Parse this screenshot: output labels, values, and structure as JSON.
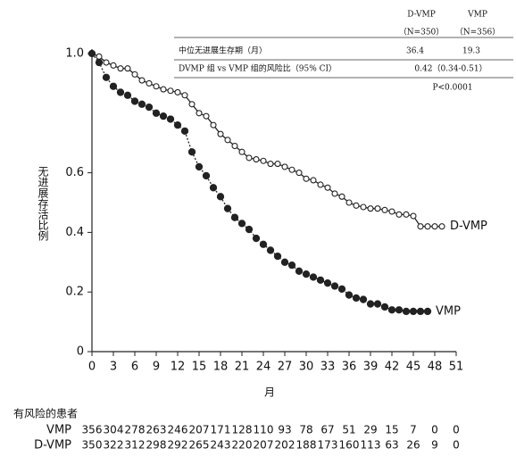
{
  "chart_data": {
    "type": "line",
    "y_label": "无进展存活比例",
    "x_label": "月",
    "x": [
      0,
      1,
      2,
      3,
      4,
      5,
      6,
      7,
      8,
      9,
      10,
      11,
      12,
      13,
      14,
      15,
      16,
      17,
      18,
      19,
      20,
      21,
      22,
      23,
      24,
      25,
      26,
      27,
      28,
      29,
      30,
      31,
      32,
      33,
      34,
      35,
      36,
      37,
      38,
      39,
      40,
      41,
      42,
      43,
      44,
      45,
      46,
      47,
      48,
      49
    ],
    "series": [
      {
        "name": "D-VMP",
        "color": "#222222",
        "line_style": "solid",
        "marker": "open",
        "values": [
          1.0,
          0.99,
          0.97,
          0.96,
          0.95,
          0.95,
          0.93,
          0.91,
          0.9,
          0.89,
          0.88,
          0.875,
          0.87,
          0.86,
          0.83,
          0.8,
          0.79,
          0.76,
          0.73,
          0.71,
          0.69,
          0.67,
          0.65,
          0.645,
          0.64,
          0.63,
          0.63,
          0.62,
          0.61,
          0.6,
          0.58,
          0.575,
          0.56,
          0.55,
          0.53,
          0.52,
          0.5,
          0.49,
          0.485,
          0.48,
          0.48,
          0.475,
          0.47,
          0.46,
          0.46,
          0.455,
          0.42,
          0.42,
          0.42,
          0.42
        ]
      },
      {
        "name": "VMP",
        "color": "#222222",
        "line_style": "dotted",
        "marker": "filled",
        "values": [
          1.0,
          0.97,
          0.92,
          0.89,
          0.87,
          0.86,
          0.84,
          0.83,
          0.82,
          0.8,
          0.79,
          0.78,
          0.76,
          0.74,
          0.67,
          0.62,
          0.59,
          0.55,
          0.52,
          0.48,
          0.45,
          0.43,
          0.41,
          0.38,
          0.36,
          0.34,
          0.32,
          0.3,
          0.29,
          0.27,
          0.26,
          0.25,
          0.24,
          0.23,
          0.22,
          0.21,
          0.19,
          0.18,
          0.175,
          0.16,
          0.16,
          0.15,
          0.14,
          0.14,
          0.135,
          0.135,
          0.135,
          0.135,
          null,
          null
        ]
      }
    ],
    "xlim": [
      0,
      51
    ],
    "xticks": [
      0,
      3,
      6,
      9,
      12,
      15,
      18,
      21,
      24,
      27,
      30,
      33,
      36,
      39,
      42,
      45,
      48,
      51
    ],
    "ylim": [
      0,
      1
    ],
    "yticks": [
      0,
      0.2,
      0.4,
      0.6,
      {
        "value": 1,
        "label": "1.0"
      }
    ],
    "stats_table": {
      "columns": [
        "D-VMP",
        "VMP"
      ],
      "n": [
        "（N=350）",
        "（N=356）"
      ],
      "rows": [
        {
          "label": "中位无进展生存期（月）",
          "values": [
            "36.4",
            "19.3"
          ]
        },
        {
          "label": "DVMP 组 vs VMP 组的风险比（95% CI）",
          "values": [
            "0.42（0.34-0.51）"
          ]
        }
      ],
      "p_value": "P<0.0001"
    },
    "risk_table": {
      "title": "有风险的患者",
      "rows": [
        {
          "name": "VMP",
          "counts": [
            "356",
            "304",
            "278",
            "263",
            "246",
            "207",
            "171",
            "128",
            "110",
            "93",
            "78",
            "67",
            "51",
            "29",
            "15",
            "7",
            "0",
            "0"
          ]
        },
        {
          "name": "D-VMP",
          "counts": [
            "350",
            "322",
            "312",
            "298",
            "292",
            "265",
            "243",
            "220",
            "207",
            "202",
            "188",
            "173",
            "160",
            "113",
            "63",
            "26",
            "9",
            "0"
          ]
        }
      ]
    }
  }
}
